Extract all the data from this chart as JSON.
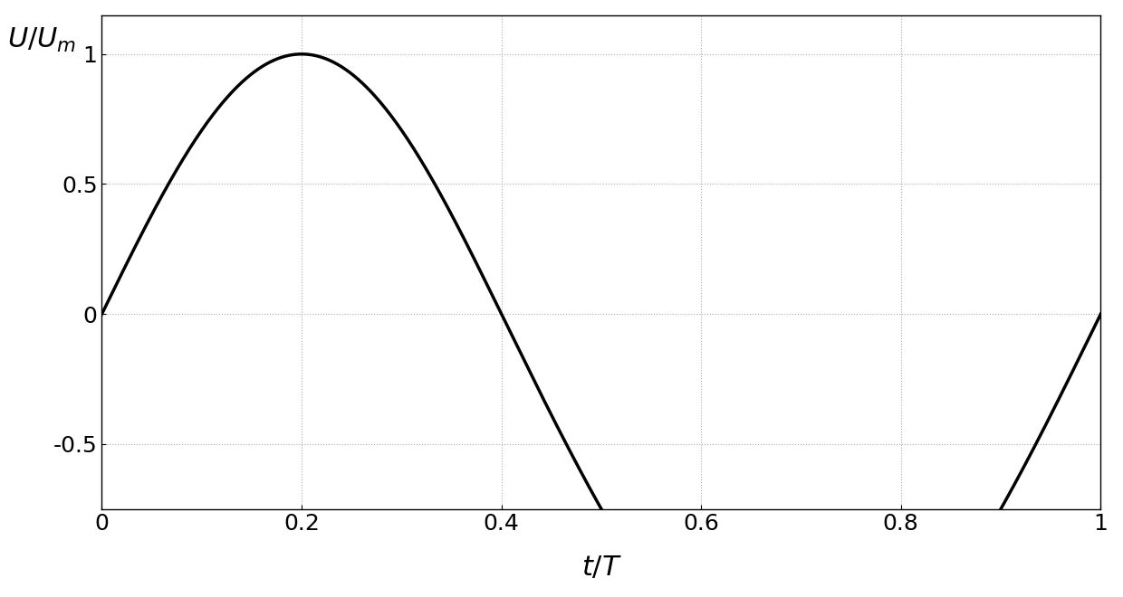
{
  "xlabel": "$t/T$",
  "ylabel": "$U/U_m$",
  "xlim": [
    0,
    1
  ],
  "ylim": [
    -0.75,
    1.15
  ],
  "xticks": [
    0,
    0.2,
    0.4,
    0.6,
    0.8,
    1.0
  ],
  "yticks": [
    -0.5,
    0,
    0.5,
    1
  ],
  "xtick_labels": [
    "0",
    "0.2",
    "0.4",
    "0.6",
    "0.8",
    "1"
  ],
  "ytick_labels": [
    "-0.5",
    "0",
    "0.5",
    "1"
  ],
  "line_color": "#000000",
  "line_width": 2.5,
  "background_color": "#ffffff",
  "grid_color": "#aaaaaa",
  "xlabel_fontsize": 22,
  "ylabel_fontsize": 22,
  "tick_fontsize": 18,
  "n_points": 2000
}
